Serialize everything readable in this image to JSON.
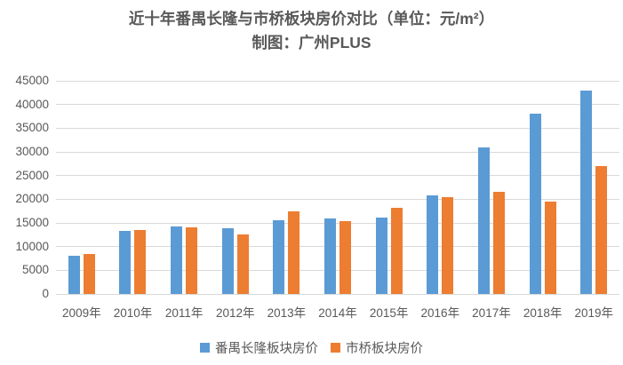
{
  "chart_data": {
    "type": "bar",
    "title": "近十年番禺长隆与市桥板块房价对比（单位：元/m²）",
    "subtitle": "制图：广州PLUS",
    "xlabel": "",
    "ylabel": "",
    "categories": [
      "2009年",
      "2010年",
      "2011年",
      "2012年",
      "2013年",
      "2014年",
      "2015年",
      "2016年",
      "2017年",
      "2018年",
      "2019年"
    ],
    "series": [
      {
        "name": "番禺长隆板块房价",
        "color": "#5b9bd5",
        "values": [
          8000,
          13400,
          14300,
          13800,
          15500,
          16000,
          16200,
          20800,
          31000,
          38000,
          43000
        ]
      },
      {
        "name": "市桥板块房价",
        "color": "#ed7d31",
        "values": [
          8500,
          13500,
          14000,
          12500,
          17500,
          15400,
          18200,
          20500,
          21500,
          19500,
          27000
        ]
      }
    ],
    "ylim": [
      0,
      45000
    ],
    "y_ticks": [
      0,
      5000,
      10000,
      15000,
      20000,
      25000,
      30000,
      35000,
      40000,
      45000
    ],
    "grid": true,
    "legend_position": "bottom"
  },
  "style_colors": {
    "gridline": "#d9d9d9",
    "axis_text": "#595959",
    "title_text": "#595959",
    "background": "#ffffff"
  }
}
